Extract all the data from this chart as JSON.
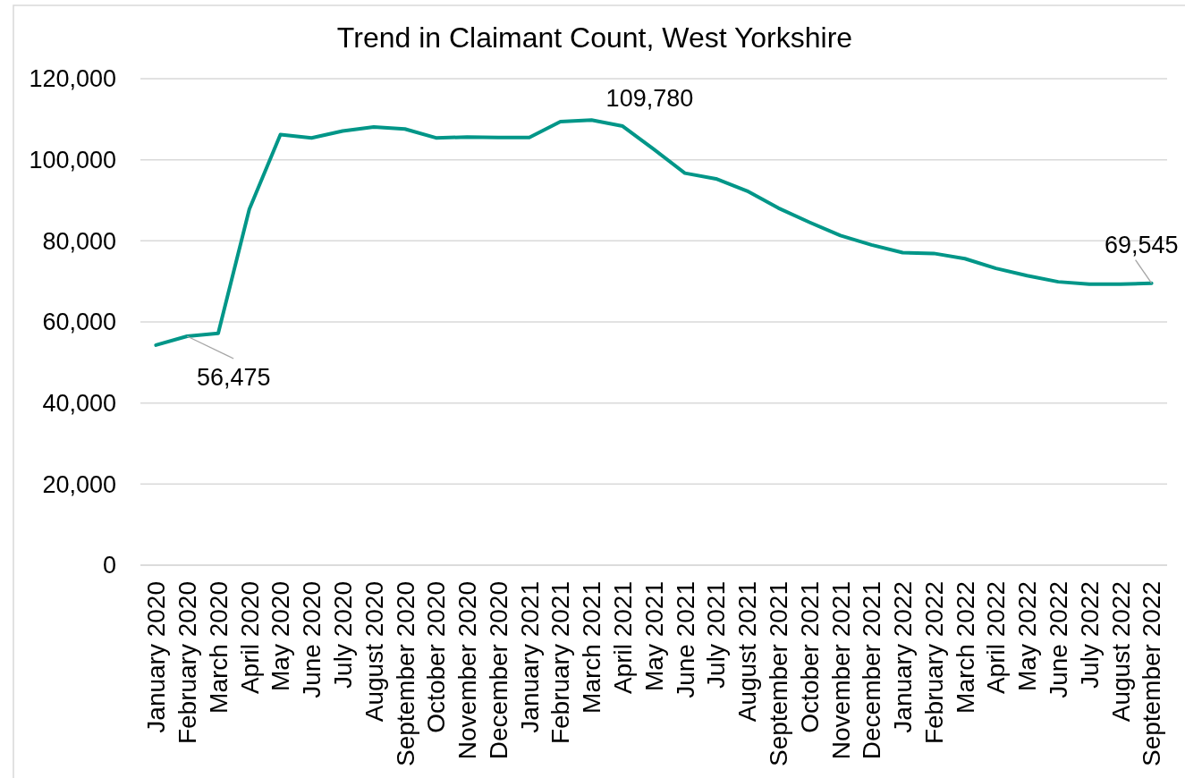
{
  "chart_data": {
    "type": "line",
    "title": "Trend in Claimant Count, West Yorkshire",
    "categories": [
      "January 2020",
      "February 2020",
      "March 2020",
      "April 2020",
      "May 2020",
      "June 2020",
      "July 2020",
      "August 2020",
      "September 2020",
      "October 2020",
      "November 2020",
      "December 2020",
      "January 2021",
      "February 2021",
      "March 2021",
      "April 2021",
      "May 2021",
      "June 2021",
      "July 2021",
      "August 2021",
      "September 2021",
      "October 2021",
      "November 2021",
      "December 2021",
      "January 2022",
      "February 2022",
      "March 2022",
      "April 2022",
      "May 2022",
      "June 2022",
      "July 2022",
      "August 2022",
      "September 2022"
    ],
    "series": [
      {
        "color": "#009688",
        "values": [
          54300,
          56475,
          57200,
          87800,
          106200,
          105400,
          107100,
          108100,
          107600,
          105400,
          105600,
          105500,
          105500,
          109400,
          109780,
          108300,
          102600,
          96700,
          95300,
          92300,
          88100,
          84600,
          81300,
          79000,
          77100,
          76900,
          75600,
          73200,
          71400,
          69900,
          69300,
          69300,
          69545
        ],
        "value_labels": [
          null,
          "56,475",
          null,
          null,
          null,
          null,
          null,
          null,
          null,
          null,
          null,
          null,
          null,
          null,
          "109,780",
          null,
          null,
          null,
          null,
          null,
          null,
          null,
          null,
          null,
          null,
          null,
          null,
          null,
          null,
          null,
          null,
          null,
          "69,545"
        ]
      }
    ],
    "ylim": [
      0,
      120000
    ],
    "yticks": [
      {
        "value": 0,
        "label": "0"
      },
      {
        "value": 20000,
        "label": "20,000"
      },
      {
        "value": 40000,
        "label": "40,000"
      },
      {
        "value": 60000,
        "label": "60,000"
      },
      {
        "value": 80000,
        "label": "80,000"
      },
      {
        "value": 100000,
        "label": "100,000"
      },
      {
        "value": 120000,
        "label": "120,000"
      }
    ],
    "grid": "y"
  }
}
